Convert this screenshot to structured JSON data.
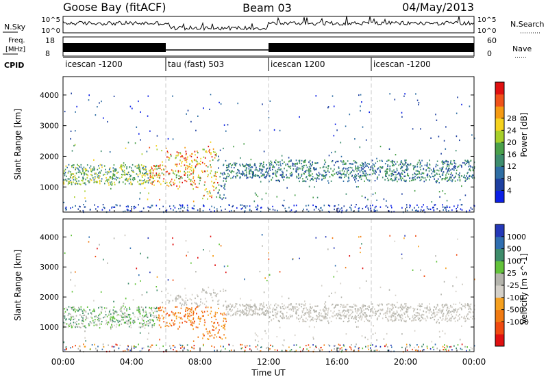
{
  "header": {
    "station": "Goose Bay (fitACF)",
    "beam": "Beam 03",
    "date": "04/May/2013"
  },
  "chart_data": [
    {
      "type": "line",
      "panel": "noise",
      "left_label": "N.Sky",
      "right_label": "N.Search",
      "left_ticks": [
        "10^5",
        "10^0"
      ],
      "right_ticks": [
        "10^5",
        "10^0"
      ],
      "ylim": [
        1,
        100000
      ]
    },
    {
      "type": "line",
      "panel": "freq-nave",
      "left_label_1": "Freq.",
      "left_label_2": "[MHz]",
      "right_label": "Nave",
      "left_ticks": [
        18,
        8
      ],
      "right_ticks": [
        60,
        0
      ],
      "ylim": [
        8,
        18
      ]
    },
    {
      "type": "table",
      "panel": "cpid",
      "label": "CPID",
      "segments": [
        {
          "name": "icescan -1200",
          "start_hour": 0,
          "end_hour": 6
        },
        {
          "name": "tau (fast) 503",
          "start_hour": 6,
          "end_hour": 12
        },
        {
          "name": "icescan 1200",
          "start_hour": 12,
          "end_hour": 18
        },
        {
          "name": "icescan -1200",
          "start_hour": 18,
          "end_hour": 24
        }
      ]
    },
    {
      "type": "heatmap",
      "panel": "power",
      "ylabel": "Slant Range [km]",
      "yticks": [
        1000,
        2000,
        3000,
        4000
      ],
      "ylim": [
        180,
        4600
      ],
      "colorbar_label": "Power [dB]",
      "colorbar_ticks": [
        4,
        8,
        12,
        16,
        20,
        24,
        28
      ],
      "colorbar_colors": [
        "#0b1fe6",
        "#1d3fa0",
        "#2f6ea4",
        "#3e8d6e",
        "#4aa04a",
        "#a7cf2a",
        "#f5d21e",
        "#f59a12",
        "#f0521a",
        "#e01010"
      ],
      "dominant_range_km": [
        1100,
        1800
      ]
    },
    {
      "type": "heatmap",
      "panel": "velocity",
      "ylabel": "Slant Range [km]",
      "yticks": [
        1000,
        2000,
        3000,
        4000
      ],
      "ylim": [
        180,
        4600
      ],
      "colorbar_label": "Velocity [m s^-1]",
      "colorbar_ticks": [
        1000,
        500,
        100,
        25,
        -25,
        -100,
        -500,
        -1000
      ],
      "colorbar_colors": [
        "#2438b8",
        "#2f6eb0",
        "#3e8c6a",
        "#62c23a",
        "#b4b4ac",
        "#d4d0c8",
        "#f5a020",
        "#f07a12",
        "#f04a10",
        "#e01010"
      ],
      "xlabel": "Time UT",
      "xticks": [
        "00:00",
        "04:00",
        "08:00",
        "12:00",
        "16:00",
        "20:00",
        "00:00"
      ],
      "xlim": [
        0,
        24
      ]
    }
  ]
}
